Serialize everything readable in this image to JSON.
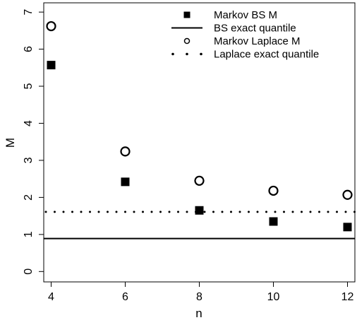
{
  "chart_data": {
    "type": "scatter",
    "title": "",
    "xlabel": "n",
    "ylabel": "M",
    "xlim": [
      3.8,
      12.2
    ],
    "ylim": [
      -0.28,
      7.25
    ],
    "x_ticks": [
      4,
      6,
      8,
      10,
      12
    ],
    "y_ticks": [
      0,
      1,
      2,
      3,
      4,
      5,
      6,
      7
    ],
    "grid": false,
    "legend_position": "top-right",
    "legend": [
      {
        "label": "Markov BS M",
        "marker": "filled-square"
      },
      {
        "label": "BS exact quantile",
        "marker": "solid-line"
      },
      {
        "label": "Markov Laplace M",
        "marker": "open-circle"
      },
      {
        "label": "Laplace exact quantile",
        "marker": "dotted-line"
      }
    ],
    "series": [
      {
        "name": "Markov BS M",
        "kind": "points",
        "marker": "filled-square",
        "x": [
          4,
          6,
          8,
          10,
          12
        ],
        "y": [
          5.57,
          2.42,
          1.65,
          1.35,
          1.2
        ]
      },
      {
        "name": "Markov Laplace M",
        "kind": "points",
        "marker": "open-circle",
        "x": [
          4,
          6,
          8,
          10,
          12
        ],
        "y": [
          6.62,
          3.24,
          2.45,
          2.18,
          2.07
        ]
      },
      {
        "name": "BS exact quantile",
        "kind": "hline",
        "style": "solid",
        "y": 0.89
      },
      {
        "name": "Laplace exact quantile",
        "kind": "hline",
        "style": "dotted",
        "y": 1.61
      }
    ],
    "colors": {
      "ink": "#000000",
      "background": "#ffffff"
    }
  }
}
